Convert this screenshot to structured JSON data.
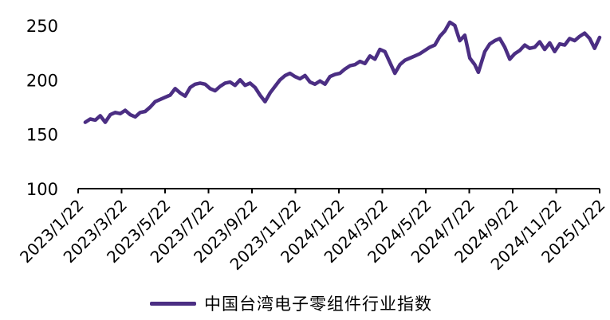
{
  "chart_data": {
    "type": "line",
    "title": "",
    "xlabel": "",
    "ylabel": "",
    "ylim": [
      100,
      250
    ],
    "yticks": [
      100,
      150,
      200,
      250
    ],
    "x_tick_labels": [
      "2023/1/22",
      "2023/3/22",
      "2023/5/22",
      "2023/7/22",
      "2023/9/22",
      "2023/11/22",
      "2024/1/22",
      "2024/3/22",
      "2024/5/22",
      "2024/7/22",
      "2024/9/22",
      "2024/11/22",
      "2025/1/22"
    ],
    "x_range": [
      "2023-01-22",
      "2025-01-22"
    ],
    "legend_position": "bottom",
    "colors": {
      "series": "#4b2e83",
      "axis": "#000000"
    },
    "series": [
      {
        "name": "中国台湾电子零组件行业指数",
        "x": [
          "2023-02-01",
          "2023-02-08",
          "2023-02-15",
          "2023-02-22",
          "2023-03-01",
          "2023-03-08",
          "2023-03-15",
          "2023-03-22",
          "2023-03-29",
          "2023-04-05",
          "2023-04-12",
          "2023-04-19",
          "2023-04-26",
          "2023-05-03",
          "2023-05-10",
          "2023-05-17",
          "2023-05-24",
          "2023-05-31",
          "2023-06-07",
          "2023-06-14",
          "2023-06-21",
          "2023-06-28",
          "2023-07-05",
          "2023-07-12",
          "2023-07-19",
          "2023-07-26",
          "2023-08-02",
          "2023-08-09",
          "2023-08-16",
          "2023-08-23",
          "2023-08-30",
          "2023-09-06",
          "2023-09-13",
          "2023-09-20",
          "2023-09-27",
          "2023-10-04",
          "2023-10-11",
          "2023-10-18",
          "2023-10-25",
          "2023-11-01",
          "2023-11-08",
          "2023-11-15",
          "2023-11-22",
          "2023-11-29",
          "2023-12-06",
          "2023-12-13",
          "2023-12-20",
          "2023-12-27",
          "2024-01-03",
          "2024-01-10",
          "2024-01-17",
          "2024-01-24",
          "2024-01-31",
          "2024-02-07",
          "2024-02-14",
          "2024-02-21",
          "2024-02-28",
          "2024-03-06",
          "2024-03-13",
          "2024-03-20",
          "2024-03-27",
          "2024-04-03",
          "2024-04-10",
          "2024-04-17",
          "2024-04-24",
          "2024-05-01",
          "2024-05-08",
          "2024-05-15",
          "2024-05-22",
          "2024-05-29",
          "2024-06-05",
          "2024-06-12",
          "2024-06-19",
          "2024-06-26",
          "2024-07-03",
          "2024-07-10",
          "2024-07-17",
          "2024-07-24",
          "2024-07-31",
          "2024-08-05",
          "2024-08-14",
          "2024-08-21",
          "2024-08-28",
          "2024-09-04",
          "2024-09-11",
          "2024-09-18",
          "2024-09-25",
          "2024-10-02",
          "2024-10-09",
          "2024-10-16",
          "2024-10-23",
          "2024-10-30",
          "2024-11-06",
          "2024-11-13",
          "2024-11-20",
          "2024-11-27",
          "2024-12-04",
          "2024-12-11",
          "2024-12-18",
          "2024-12-25",
          "2025-01-01",
          "2025-01-08",
          "2025-01-15",
          "2025-01-22"
        ],
        "values": [
          161,
          164,
          163,
          167,
          161,
          168,
          170,
          169,
          172,
          168,
          166,
          170,
          171,
          175,
          180,
          182,
          184,
          186,
          192,
          188,
          185,
          193,
          196,
          197,
          196,
          192,
          190,
          194,
          197,
          198,
          195,
          200,
          195,
          197,
          193,
          186,
          180,
          188,
          194,
          200,
          204,
          206,
          203,
          201,
          204,
          198,
          196,
          199,
          196,
          203,
          205,
          206,
          210,
          213,
          214,
          217,
          215,
          222,
          219,
          228,
          226,
          216,
          206,
          214,
          218,
          220,
          222,
          224,
          227,
          230,
          232,
          240,
          245,
          253,
          250,
          236,
          241,
          220,
          214,
          207,
          226,
          233,
          236,
          238,
          230,
          219,
          224,
          227,
          232,
          229,
          230,
          235,
          228,
          234,
          226,
          233,
          232,
          238,
          236,
          240,
          243,
          238,
          229,
          239
        ]
      }
    ]
  }
}
